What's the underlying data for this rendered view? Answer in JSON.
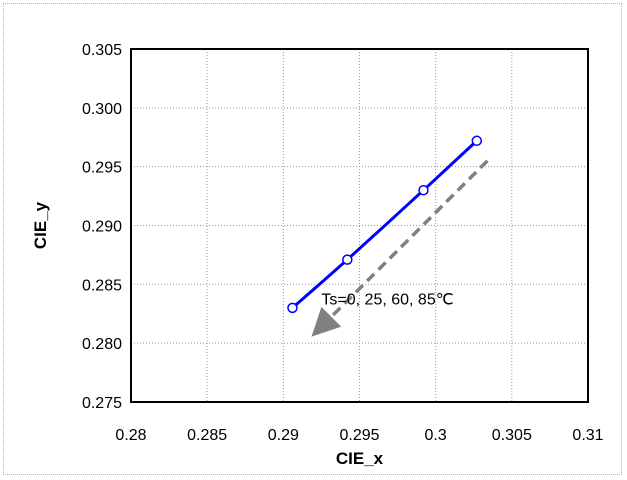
{
  "chart_data": {
    "type": "scatter",
    "xlabel": "CIE_x",
    "ylabel": "CIE_y",
    "xlim": [
      0.28,
      0.31
    ],
    "ylim": [
      0.275,
      0.305
    ],
    "xticks": [
      0.28,
      0.285,
      0.29,
      0.295,
      0.3,
      0.305,
      0.31
    ],
    "xtick_labels": [
      "0.28",
      "0.285",
      "0.29",
      "0.295",
      "0.3",
      "0.305",
      "0.31"
    ],
    "yticks": [
      0.275,
      0.28,
      0.285,
      0.29,
      0.295,
      0.3,
      0.305
    ],
    "ytick_labels": [
      "0.275",
      "0.280",
      "0.285",
      "0.290",
      "0.295",
      "0.300",
      "0.305"
    ],
    "grid": true,
    "series": [
      {
        "x": [
          0.2906,
          0.2942,
          0.2992,
          0.3027
        ],
        "y": [
          0.283,
          0.2871,
          0.293,
          0.2972
        ],
        "color": "#0000ff",
        "marker": "open-circle",
        "line": "smooth"
      }
    ],
    "annotation": {
      "text": "Ts=0, 25, 60, 85℃",
      "arrow_color": "#808080",
      "arrow_from": [
        0.3034,
        0.2955
      ],
      "arrow_to": [
        0.2925,
        0.2814
      ],
      "text_x": 0.2925,
      "text_y": 0.2833
    }
  }
}
